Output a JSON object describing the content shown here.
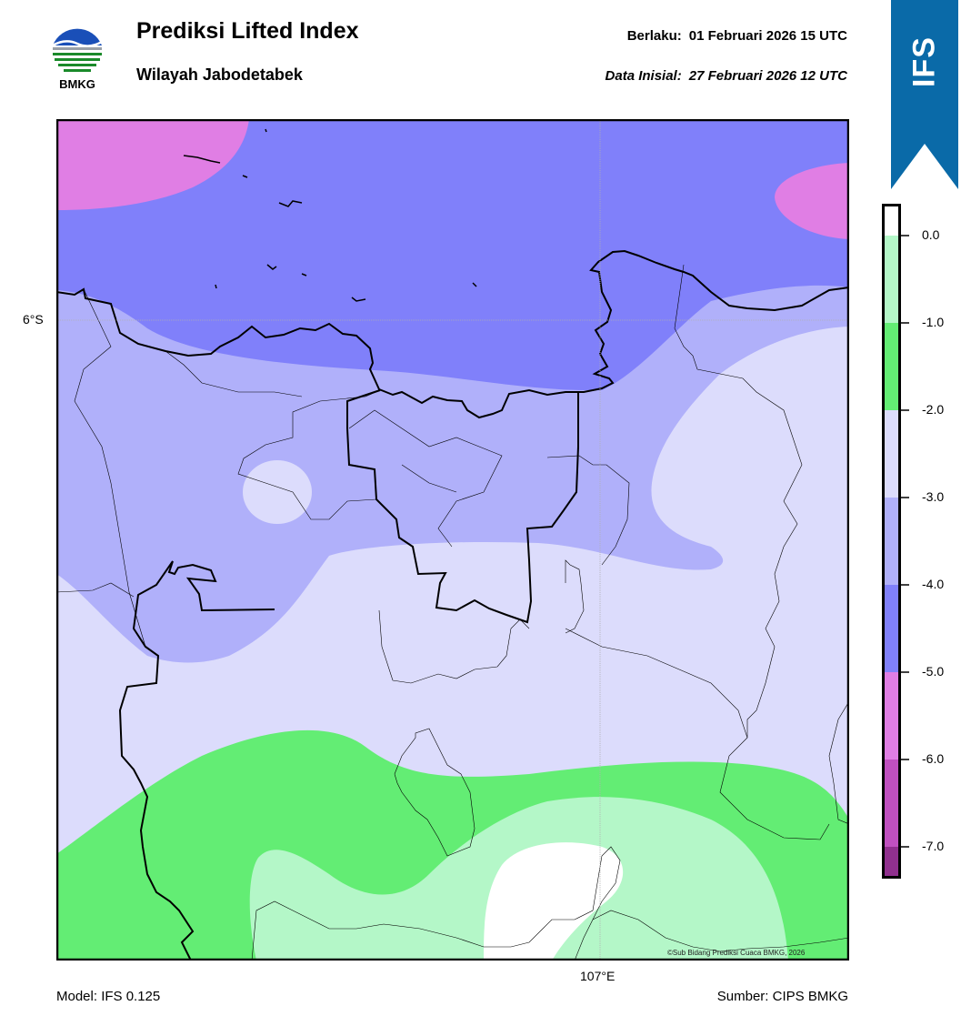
{
  "header": {
    "title": "Prediksi Lifted Index",
    "subtitle": "Wilayah Jabodetabek",
    "valid_label": "Berlaku:",
    "valid_value": "01 Februari 2026 15 UTC",
    "init_label": "Data Inisial:",
    "init_value": "27 Februari 2026 12 UTC"
  },
  "logo": {
    "text": "BMKG",
    "icon": "bmkg-logo"
  },
  "ribbon": {
    "text": "IFS",
    "color": "#0a6aa8"
  },
  "map": {
    "lat_label": "6°S",
    "lon_label": "107°E",
    "credit": "©Sub Bidang Prediksi Cuaca BMKG, 2026"
  },
  "colorbar": {
    "ticks": [
      "0.0",
      "-1.0",
      "-2.0",
      "-3.0",
      "-4.0",
      "-5.0",
      "-6.0",
      "-7.0"
    ],
    "bins": [
      {
        "range": "0.0 to -1.0",
        "color": "#b4f7c8"
      },
      {
        "range": "-1.0 to -2.0",
        "color": "#63ed74"
      },
      {
        "range": "-2.0 to -3.0",
        "color": "#dcdcfc"
      },
      {
        "range": "-3.0 to -4.0",
        "color": "#b0b0fa"
      },
      {
        "range": "-4.0 to -5.0",
        "color": "#8080fa"
      },
      {
        "range": "-5.0 to -6.0",
        "color": "#e07ee4"
      },
      {
        "range": "-6.0 to -7.0",
        "color": "#c050c0"
      },
      {
        "range": "below -7.0",
        "color": "#90308e"
      }
    ]
  },
  "footer": {
    "model": "Model: IFS 0.125",
    "source": "Sumber: CIPS BMKG"
  }
}
